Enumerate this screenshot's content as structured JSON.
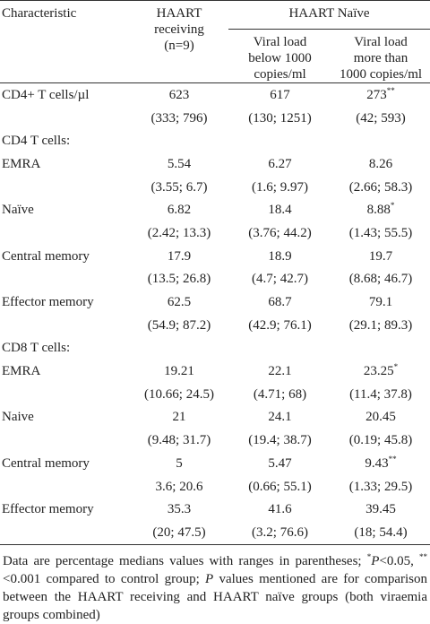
{
  "header": {
    "characteristic": "Characteristic",
    "haart_receiving": [
      "HAART",
      "receiving",
      "(n=9)"
    ],
    "haart_naive": "HAART Naïve",
    "below": [
      "Viral load",
      "below 1000",
      "copies/ml"
    ],
    "above": [
      "Viral load",
      "more than",
      "1000 copies/ml"
    ]
  },
  "rows": [
    {
      "label": "CD4+ T cells/µl",
      "cells": [
        {
          "median": "623",
          "range": "(333; 796)"
        },
        {
          "median": "617",
          "range": "(130; 1251)"
        },
        {
          "median": "273",
          "sup": "**",
          "range": "(42; 593)"
        }
      ]
    },
    {
      "label": "CD4 T cells:"
    },
    {
      "label": "EMRA",
      "cells": [
        {
          "median": "5.54",
          "range": "(3.55; 6.7)"
        },
        {
          "median": "6.27",
          "range": "(1.6; 9.97)"
        },
        {
          "median": "8.26",
          "range": "(2.66; 58.3)"
        }
      ]
    },
    {
      "label": "Naïve",
      "cells": [
        {
          "median": "6.82",
          "range": "(2.42; 13.3)"
        },
        {
          "median": "18.4",
          "range": "(3.76; 44.2)"
        },
        {
          "median": "8.88",
          "sup": "*",
          "range": "(1.43; 55.5)"
        }
      ]
    },
    {
      "label": "Central memory",
      "cells": [
        {
          "median": "17.9",
          "range": "(13.5; 26.8)"
        },
        {
          "median": "18.9",
          "range": "(4.7; 42.7)"
        },
        {
          "median": "19.7",
          "range": "(8.68; 46.7)"
        }
      ]
    },
    {
      "label": "Effector memory",
      "cells": [
        {
          "median": "62.5",
          "range": "(54.9; 87.2)"
        },
        {
          "median": "68.7",
          "range": "(42.9; 76.1)"
        },
        {
          "median": "79.1",
          "range": "(29.1; 89.3)"
        }
      ]
    },
    {
      "label": "CD8 T cells:"
    },
    {
      "label": "EMRA",
      "cells": [
        {
          "median": "19.21",
          "range": "(10.66; 24.5)"
        },
        {
          "median": "22.1",
          "range": "(4.71; 68)"
        },
        {
          "median": "23.25",
          "sup": "*",
          "range": "(11.4; 37.8)"
        }
      ]
    },
    {
      "label": "Naive",
      "cells": [
        {
          "median": "21",
          "range": "(9.48; 31.7)"
        },
        {
          "median": "24.1",
          "range": "(19.4; 38.7)"
        },
        {
          "median": "20.45",
          "range": "(0.19; 45.8)"
        }
      ]
    },
    {
      "label": "Central memory",
      "cells": [
        {
          "median": "5",
          "range": "3.6; 20.6"
        },
        {
          "median": "5.47",
          "range": "(0.66; 55.1)"
        },
        {
          "median": "9.43",
          "sup": "**",
          "range": "(1.33; 29.5)"
        }
      ]
    },
    {
      "label": "Effector memory",
      "cells": [
        {
          "median": "35.3",
          "range": "(20; 47.5)"
        },
        {
          "median": "41.6",
          "range": "(3.2; 76.6)"
        },
        {
          "median": "39.45",
          "range": "(18; 54.4)"
        }
      ]
    }
  ],
  "footnote": [
    "Data are percentage medians values with ranges in parentheses; ",
    "*",
    "P",
    "<0.05, ",
    "**",
    "<0.001 compared to control group; ",
    "P",
    " values mentioned are for comparison between the HAART receiving and HAART naïve groups (both viraemia groups combined)"
  ]
}
